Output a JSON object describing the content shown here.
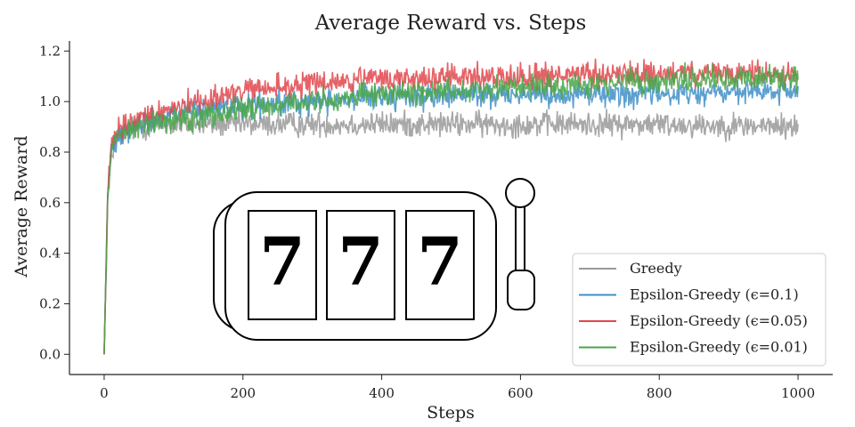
{
  "chart_data": {
    "type": "line",
    "title": "Average Reward vs. Steps",
    "xlabel": "Steps",
    "ylabel": "Average Reward",
    "xlim": [
      -50,
      1050
    ],
    "ylim": [
      -0.08,
      1.24
    ],
    "xticks": [
      0,
      200,
      400,
      600,
      800,
      1000
    ],
    "yticks": [
      0.0,
      0.2,
      0.4,
      0.6,
      0.8,
      1.0,
      1.2
    ],
    "grid": false,
    "legend_position": "lower-right",
    "steps": 1000,
    "series": [
      {
        "name": "Greedy",
        "color": "#999999",
        "x": [
          0,
          5,
          10,
          15,
          20,
          30,
          50,
          100,
          200,
          400,
          600,
          800,
          1000
        ],
        "y": [
          0.0,
          0.6,
          0.78,
          0.84,
          0.86,
          0.88,
          0.9,
          0.91,
          0.91,
          0.91,
          0.91,
          0.91,
          0.9
        ],
        "noise": 0.025
      },
      {
        "name": "Epsilon-Greedy (ϵ=0.1)",
        "color": "#3f8fc8",
        "x": [
          0,
          5,
          10,
          15,
          20,
          30,
          50,
          100,
          200,
          300,
          400,
          600,
          800,
          1000
        ],
        "y": [
          0.0,
          0.62,
          0.8,
          0.85,
          0.87,
          0.89,
          0.91,
          0.95,
          0.98,
          1.0,
          1.02,
          1.03,
          1.03,
          1.04
        ],
        "noise": 0.025
      },
      {
        "name": "Epsilon-Greedy (ϵ=0.05)",
        "color": "#e0474c",
        "x": [
          0,
          5,
          10,
          15,
          20,
          30,
          50,
          100,
          200,
          300,
          400,
          600,
          800,
          1000
        ],
        "y": [
          0.0,
          0.63,
          0.81,
          0.86,
          0.88,
          0.9,
          0.93,
          0.98,
          1.04,
          1.07,
          1.09,
          1.1,
          1.11,
          1.11
        ],
        "noise": 0.025
      },
      {
        "name": "Epsilon-Greedy (ϵ=0.01)",
        "color": "#4aa64a",
        "x": [
          0,
          5,
          10,
          15,
          20,
          30,
          50,
          100,
          200,
          300,
          400,
          600,
          800,
          1000
        ],
        "y": [
          0.0,
          0.62,
          0.8,
          0.85,
          0.87,
          0.89,
          0.9,
          0.93,
          0.97,
          1.0,
          1.03,
          1.06,
          1.08,
          1.1
        ],
        "noise": 0.025
      }
    ]
  },
  "slot_machine": {
    "icon": "slot-machine-icon",
    "reels": [
      "7",
      "7",
      "7"
    ]
  }
}
